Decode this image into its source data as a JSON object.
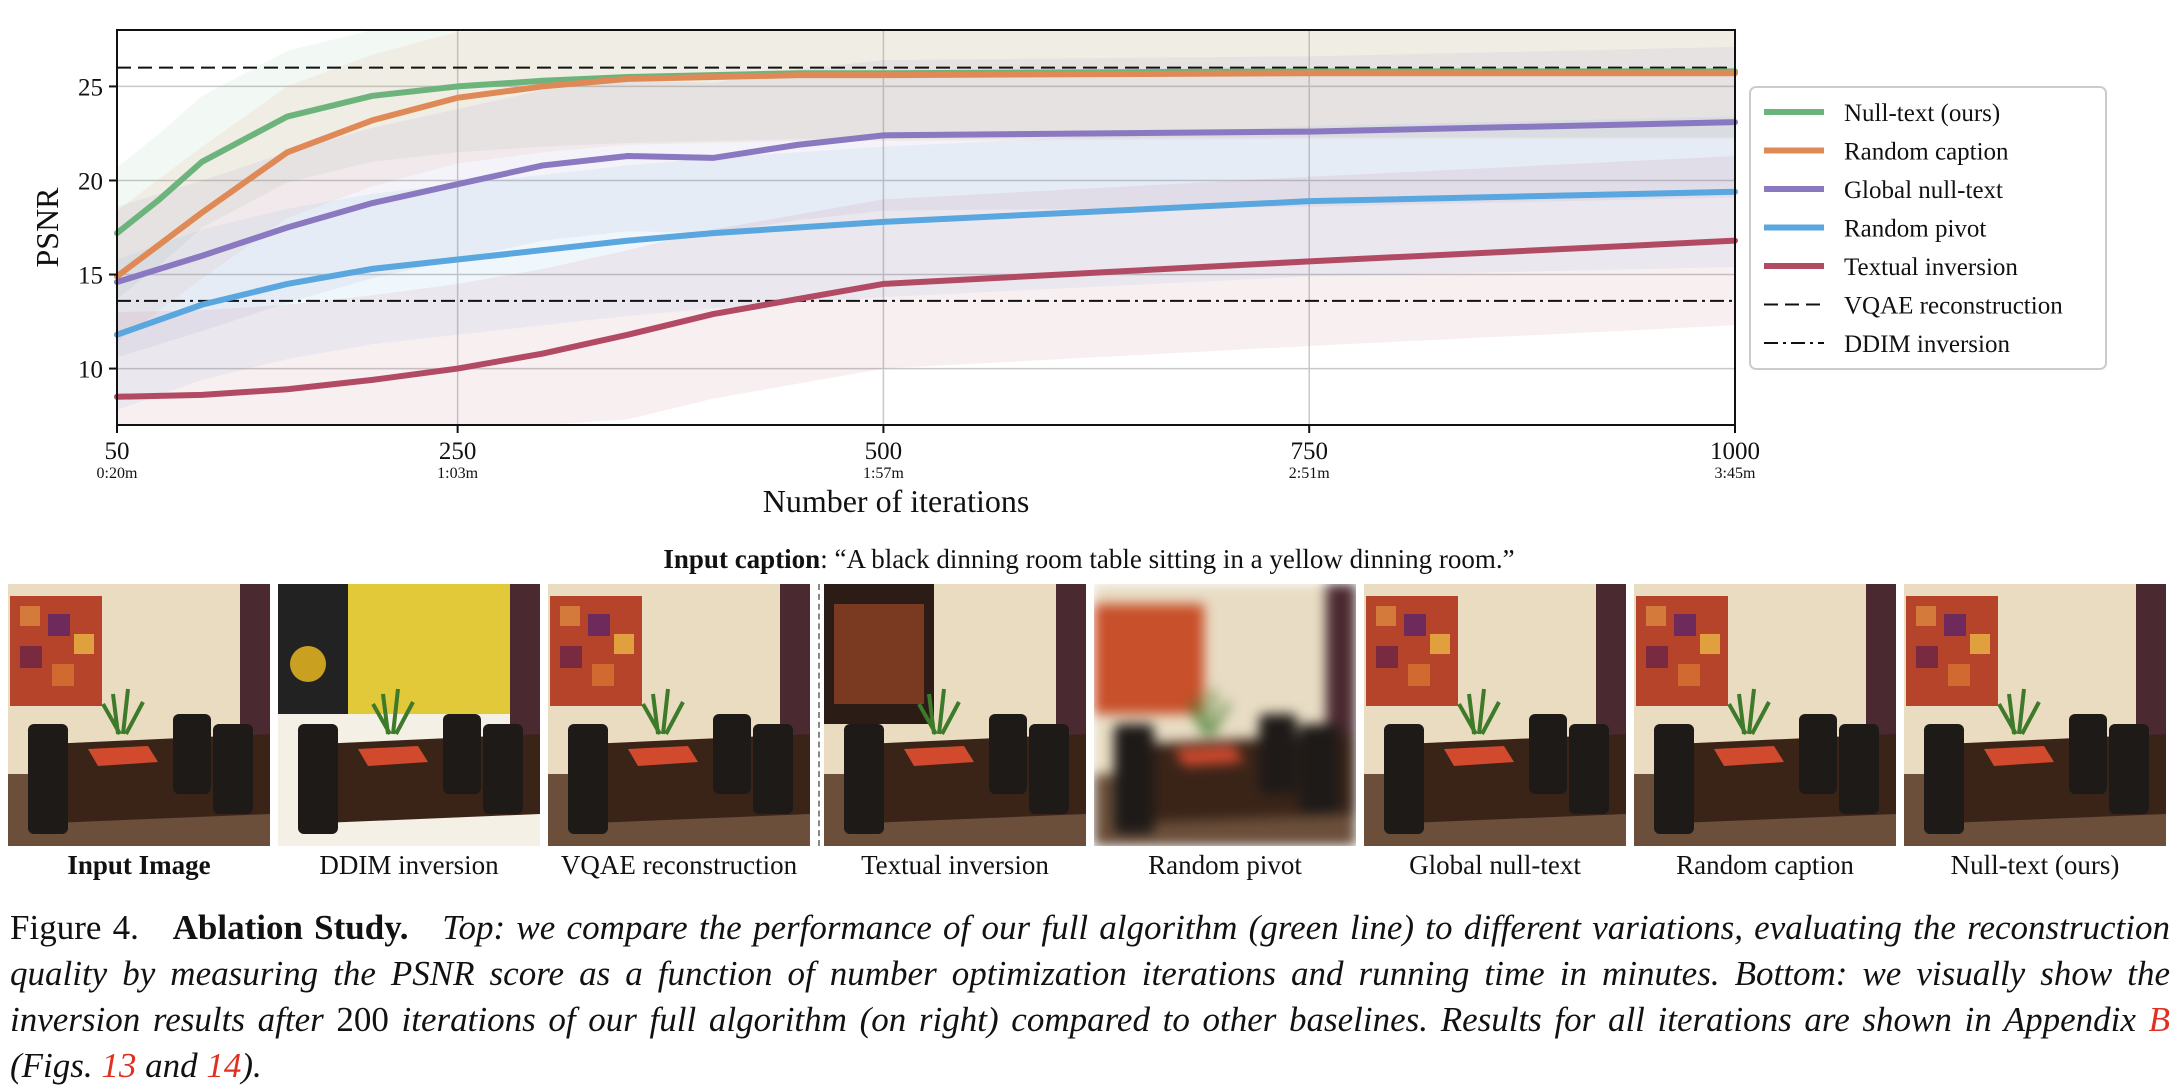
{
  "chart_data": {
    "type": "line",
    "xlabel": "Number of iterations",
    "ylabel": "PSNR",
    "xlim": [
      50,
      1000
    ],
    "ylim": [
      7,
      28
    ],
    "xticks": [
      {
        "value": 50,
        "label": "50",
        "sub": "0:20m"
      },
      {
        "value": 250,
        "label": "250",
        "sub": "1:03m"
      },
      {
        "value": 500,
        "label": "500",
        "sub": "1:57m"
      },
      {
        "value": 750,
        "label": "750",
        "sub": "2:51m"
      },
      {
        "value": 1000,
        "label": "1000",
        "sub": "3:45m"
      }
    ],
    "yticks": [
      10,
      15,
      20,
      25
    ],
    "grid": true,
    "legend_position": "right",
    "series": [
      {
        "name": "Null-text (ours)",
        "color": "#6db47c",
        "band": 3.5,
        "x": [
          50,
          75,
          100,
          150,
          200,
          250,
          300,
          350,
          400,
          450,
          500,
          750,
          1000
        ],
        "y": [
          17.2,
          19.0,
          21.0,
          23.4,
          24.5,
          25.0,
          25.3,
          25.5,
          25.6,
          25.7,
          25.7,
          25.8,
          25.8
        ]
      },
      {
        "name": "Random caption",
        "color": "#df8a56",
        "band": 3.5,
        "x": [
          50,
          75,
          100,
          150,
          200,
          250,
          300,
          350,
          400,
          450,
          500,
          750,
          1000
        ],
        "y": [
          14.9,
          16.6,
          18.3,
          21.5,
          23.2,
          24.4,
          25.0,
          25.4,
          25.5,
          25.6,
          25.6,
          25.7,
          25.7
        ]
      },
      {
        "name": "Global null-text",
        "color": "#8a78c0",
        "band": 4.0,
        "x": [
          50,
          100,
          150,
          200,
          250,
          300,
          350,
          400,
          450,
          500,
          750,
          1000
        ],
        "y": [
          14.6,
          16.0,
          17.5,
          18.8,
          19.8,
          20.8,
          21.3,
          21.2,
          21.9,
          22.4,
          22.6,
          23.1
        ]
      },
      {
        "name": "Random pivot",
        "color": "#5aa6de",
        "band": 4.0,
        "x": [
          50,
          100,
          150,
          200,
          250,
          300,
          350,
          400,
          450,
          500,
          750,
          1000
        ],
        "y": [
          11.8,
          13.4,
          14.5,
          15.3,
          15.8,
          16.3,
          16.8,
          17.2,
          17.5,
          17.8,
          18.9,
          19.4
        ],
        "band_lo": 4.0
      },
      {
        "name": "Textual inversion",
        "color": "#b24a64",
        "band": 4.5,
        "x": [
          50,
          100,
          150,
          200,
          250,
          300,
          350,
          400,
          450,
          500,
          750,
          1000
        ],
        "y": [
          8.5,
          8.6,
          8.9,
          9.4,
          10.0,
          10.8,
          11.8,
          12.9,
          13.7,
          14.5,
          15.7,
          16.8
        ]
      }
    ],
    "hlines": [
      {
        "name": "VQAE reconstruction",
        "y": 26.0,
        "style": "dashed"
      },
      {
        "name": "DDIM inversion",
        "y": 13.6,
        "style": "dashdot"
      }
    ]
  },
  "input_caption": {
    "label": "Input caption",
    "text": ": “A black dinning room table sitting in a yellow dinning room.”"
  },
  "thumbnails": [
    {
      "label": "Input Image",
      "bold": true
    },
    {
      "label": "DDIM inversion",
      "bold": false
    },
    {
      "label": "VQAE reconstruction",
      "bold": false
    },
    {
      "label": "Textual inversion",
      "bold": false
    },
    {
      "label": "Random pivot",
      "bold": false
    },
    {
      "label": "Global null-text",
      "bold": false
    },
    {
      "label": "Random caption",
      "bold": false
    },
    {
      "label": "Null-text (ours)",
      "bold": false
    }
  ],
  "figure_caption": {
    "number": "Figure 4.",
    "title": "Ablation Study.",
    "text_top_label": "Top:",
    "text_top": " we compare the performance of our full algorithm (green line) to different variations, evaluating the reconstruction quality by measuring the PSNR score as a function of number optimization iterations and running time in minutes.",
    "text_bottom_label": "Bottom:",
    "text_bottom_1": " we visually show the inversion results after ",
    "iterations": "200",
    "text_bottom_2": " iterations of our full algorithm (on right) compared to other baselines.  Results for all iterations are shown in Appendix ",
    "ref_appendix": "B",
    "text_figs": " (Figs. ",
    "ref_fig1": "13",
    "text_and": " and ",
    "ref_fig2": "14",
    "text_end": ")."
  }
}
